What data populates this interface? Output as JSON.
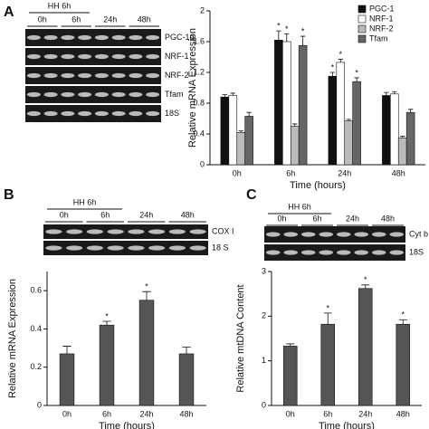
{
  "panel_labels": [
    "A",
    "B",
    "C"
  ],
  "gels": [
    {
      "header": "HH 6h",
      "lanes": [
        "0h",
        "6h",
        "24h",
        "48h"
      ],
      "rows": [
        "PGC-1α",
        "NRF-1",
        "NRF-2",
        "Tfam",
        "18S"
      ]
    },
    {
      "header": "HH 6h",
      "lanes": [
        "0h",
        "6h",
        "24h",
        "48h"
      ],
      "rows": [
        "COX I",
        "18 S"
      ]
    },
    {
      "header": "HH 6h",
      "lanes": [
        "0h",
        "6h",
        "24h",
        "48h"
      ],
      "rows": [
        "Cyt b",
        "18S"
      ]
    }
  ],
  "chart_data": [
    {
      "type": "bar",
      "y_label": "Relative mRNA Expression",
      "x_label": "Time (hours)",
      "categories": [
        "0h",
        "6h",
        "24h",
        "48h"
      ],
      "series": [
        {
          "name": "PGC-1",
          "color": "#111111",
          "values": [
            0.88,
            1.62,
            1.15,
            0.9
          ],
          "errors": [
            0.03,
            0.12,
            0.05,
            0.04
          ],
          "significance": [
            null,
            "*",
            "*",
            null
          ]
        },
        {
          "name": "NRF-1",
          "color": "#ffffff",
          "values": [
            0.9,
            1.6,
            1.33,
            0.92
          ],
          "errors": [
            0.03,
            0.1,
            0.04,
            0.03
          ],
          "significance": [
            null,
            "*",
            "*",
            null
          ]
        },
        {
          "name": "NRF-2",
          "color": "#bbbbbb",
          "values": [
            0.42,
            0.5,
            0.57,
            0.35
          ],
          "errors": [
            0.02,
            0.03,
            0.02,
            0.02
          ],
          "significance": [
            null,
            null,
            null,
            null
          ]
        },
        {
          "name": "Tfam",
          "color": "#666666",
          "values": [
            0.63,
            1.55,
            1.08,
            0.68
          ],
          "errors": [
            0.05,
            0.12,
            0.05,
            0.04
          ],
          "significance": [
            null,
            "*",
            "*",
            null
          ]
        }
      ],
      "ylim": [
        0,
        2
      ],
      "yticks": [
        0,
        0.4,
        0.8,
        1.2,
        1.6,
        2
      ]
    },
    {
      "type": "bar",
      "y_label": "Relative mRNA Expression",
      "x_label": "Time (hours)",
      "categories": [
        "0h",
        "6h",
        "24h",
        "48h"
      ],
      "color": "#555555",
      "values": [
        0.27,
        0.42,
        0.55,
        0.27
      ],
      "errors": [
        0.04,
        0.02,
        0.045,
        0.035
      ],
      "significance": [
        null,
        "*",
        "*",
        null
      ],
      "ylim": [
        0,
        0.7
      ],
      "yticks": [
        0,
        0.2,
        0.4,
        0.6
      ]
    },
    {
      "type": "bar",
      "y_label": "Relative mtDNA Content",
      "x_label": "Time (hours)",
      "categories": [
        "0h",
        "6h",
        "24h",
        "48h"
      ],
      "color": "#555555",
      "values": [
        1.33,
        1.82,
        2.62,
        1.82
      ],
      "errors": [
        0.05,
        0.25,
        0.08,
        0.1
      ],
      "significance": [
        null,
        "*",
        "*",
        "*"
      ],
      "ylim": [
        0,
        3
      ],
      "yticks": [
        0,
        1,
        2,
        3
      ]
    }
  ]
}
